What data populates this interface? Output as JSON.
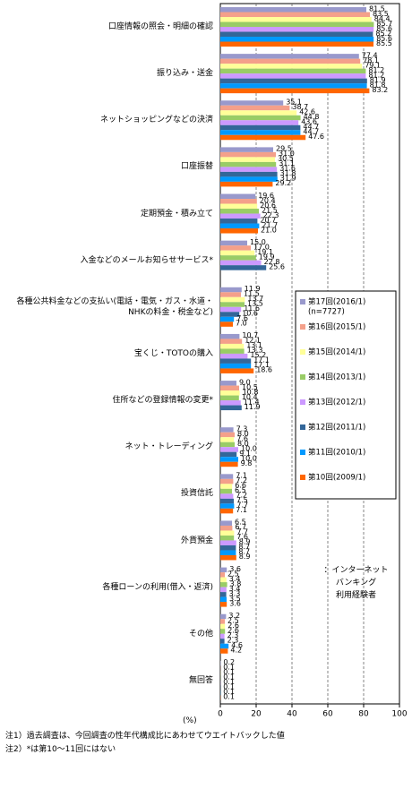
{
  "chart_data": {
    "type": "bar",
    "orientation": "horizontal",
    "categories": [
      "口座情報の照会・明細の確認",
      "振り込み・送金",
      "ネットショッピングなどの決済",
      "口座振替",
      "定期預金・積み立て",
      "入金などのメールお知らせサービス*",
      "各種公共料金などの支払い(電話・電気・ガス・水道・NHKの料金・税金など)",
      "宝くじ・TOTOの購入",
      "住所などの登録情報の変更*",
      "ネット・トレーディング",
      "投資信託",
      "外貨預金",
      "各種ローンの利用(借入・返済)",
      "その他",
      "無回答"
    ],
    "series": [
      {
        "name": "第17回(2016/1)",
        "color": "#9999cc",
        "values": [
          81.5,
          77.4,
          35.1,
          29.5,
          19.6,
          15.0,
          11.9,
          10.7,
          9.0,
          7.3,
          7.1,
          6.5,
          3.6,
          3.2,
          0.2
        ],
        "value_labels": [
          "81.5",
          "77.4",
          "35.1",
          "29.5",
          "19.6",
          "15.0",
          "11.9",
          "10.7",
          "9.0",
          "7.3",
          "7.1",
          "6.5",
          "3.6",
          "3.2",
          "0.2"
        ]
      },
      {
        "name": "第16回(2015/1)",
        "color": "#f4a08a",
        "values": [
          83.5,
          78.1,
          38.7,
          31.0,
          20.4,
          17.0,
          11.5,
          12.1,
          10.5,
          8.0,
          7.2,
          6.7,
          2.5,
          2.5,
          0.1
        ],
        "value_labels": [
          "83.5",
          "78.1",
          "38.7",
          "31.0",
          "20.4",
          "17.0",
          "11.5",
          "12.1",
          "10.5",
          "8.0",
          "7.2",
          "6.7",
          "2.5",
          "2.5",
          "0.1"
        ]
      },
      {
        "name": "第15回(2014/1)",
        "color": "#ffff99",
        "values": [
          84.4,
          79.1,
          42.6,
          30.5,
          20.6,
          19.1,
          13.7,
          13.1,
          10.8,
          7.6,
          6.6,
          7.7,
          3.4,
          2.6,
          0.1
        ],
        "value_labels": [
          "84.4",
          "79.1",
          "42.6",
          "30.5",
          "20.6",
          "19.1",
          "13.7",
          "13.1",
          "10.8",
          "7.6",
          "6.6",
          "7.7",
          "3.4",
          "2.6",
          "0.1"
        ]
      },
      {
        "name": "第14回(2013/1)",
        "color": "#99cc66",
        "values": [
          85.7,
          81.2,
          44.8,
          31.1,
          21.5,
          19.9,
          13.5,
          13.3,
          10.4,
          8.0,
          6.5,
          7.6,
          3.8,
          2.6,
          0.1
        ],
        "value_labels": [
          "85.7",
          "81.2",
          "44.8",
          "31.1",
          "21.5",
          "19.9",
          "13.5",
          "13.3",
          "10.4",
          "8.0",
          "6.5",
          "7.6",
          "3.8",
          "2.6",
          "0.1"
        ]
      },
      {
        "name": "第13回(2012/1)",
        "color": "#cc99ff",
        "values": [
          85.6,
          81.2,
          43.6,
          31.6,
          22.3,
          22.8,
          11.6,
          15.2,
          11.4,
          10.0,
          7.2,
          8.9,
          3.4,
          2.3,
          0.1
        ],
        "value_labels": [
          "85.6",
          "81.2",
          "43.6",
          "31.6",
          "22.3",
          "22.8",
          "11.6",
          "15.2",
          "11.4",
          "10.0",
          "7.2",
          "8.9",
          "3.4",
          "2.3",
          "0.1"
        ]
      },
      {
        "name": "第12回(2011/1)",
        "color": "#336699",
        "values": [
          85.2,
          81.9,
          44.7,
          31.8,
          20.7,
          25.6,
          10.6,
          17.1,
          11.9,
          9.1,
          7.5,
          8.7,
          3.3,
          2.3,
          0.1
        ],
        "value_labels": [
          "85.2",
          "81.9",
          "44.7",
          "31.8",
          "20.7",
          "25.6",
          "10.6",
          "17.1",
          "11.9",
          "9.1",
          "7.5",
          "8.7",
          "3.3",
          "2.3",
          "0.1"
        ]
      },
      {
        "name": "第11回(2010/1)",
        "color": "#0099ff",
        "values": [
          85.6,
          81.8,
          44.7,
          31.9,
          21.7,
          null,
          7.6,
          17.1,
          null,
          10.0,
          7.7,
          8.7,
          3.5,
          4.6,
          0.1
        ],
        "value_labels": [
          "85.6",
          "81.8",
          "44.7",
          "31.9",
          "21.7",
          null,
          "7.6",
          "17.1",
          null,
          "10.0",
          "7.7",
          "8.7",
          "3.5",
          "4.6",
          "0.1"
        ]
      },
      {
        "name": "第10回(2009/1)",
        "color": "#ff6600",
        "values": [
          85.5,
          83.2,
          47.6,
          29.2,
          21.0,
          null,
          7.0,
          18.6,
          null,
          9.8,
          7.1,
          8.9,
          3.6,
          4.2,
          0.1
        ],
        "value_labels": [
          "85.5",
          "83.2",
          "47.6",
          "29.2",
          "21.0",
          null,
          "7.0",
          "18.6",
          null,
          "9.8",
          "7.1",
          "8.9",
          "3.6",
          "4.2",
          "0.1"
        ]
      }
    ],
    "sample_note": "(n=7727)",
    "xlim": [
      0,
      100
    ],
    "xticks": [
      0,
      20,
      40,
      60,
      80,
      100
    ],
    "grid": true,
    "unit_label": "(%)",
    "annotation": [
      "：インターネット",
      "バンキング",
      "利用経験者"
    ],
    "notes": [
      "注1）過去調査は、今回調査の性年代構成比にあわせてウエイトバックした値",
      "注2）*は第10～11回にはない"
    ]
  }
}
